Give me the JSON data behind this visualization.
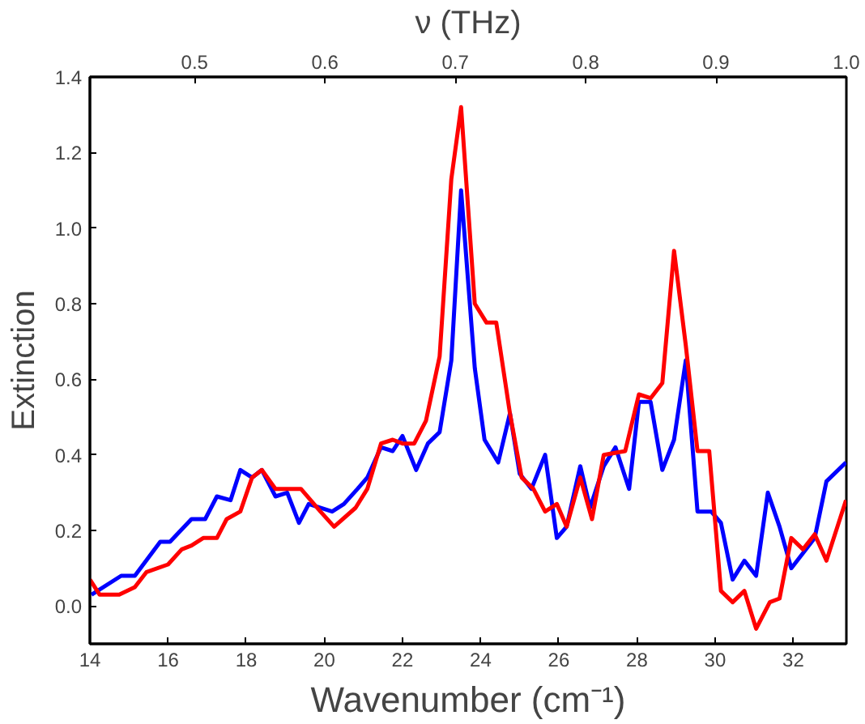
{
  "chart_data": {
    "type": "line",
    "xlabel": "Wavenumber (cm⁻¹)",
    "ylabel": "Extinction",
    "x2label": "ν (THz)",
    "xlim": [
      14,
      33.36
    ],
    "xticks": [
      14,
      16,
      18,
      20,
      22,
      24,
      26,
      28,
      30,
      32
    ],
    "x2lim": [
      0.4197,
      1.0
    ],
    "x2ticks": [
      0.5,
      0.6,
      0.7,
      0.8,
      0.9,
      {
        "value": 1.0,
        "label": "1.0"
      }
    ],
    "ylim": [
      -0.1,
      1.4
    ],
    "yticks": [
      {
        "value": 0,
        "label": "0.0"
      },
      0.2,
      0.4,
      0.6,
      0.8,
      {
        "value": 1.0,
        "label": "1.0"
      },
      1.2,
      1.4
    ],
    "grid": false,
    "marker": "none",
    "line_style": "solid",
    "series": [
      {
        "color": "#0000ff",
        "x": [
          14.04,
          14.8,
          15.15,
          15.8,
          16.05,
          16.6,
          16.95,
          17.25,
          17.6,
          17.85,
          18.15,
          18.4,
          18.75,
          19.05,
          19.35,
          19.6,
          20.2,
          20.5,
          20.85,
          21.1,
          21.45,
          21.75,
          22.0,
          22.35,
          22.65,
          22.95,
          23.25,
          23.5,
          23.85,
          24.1,
          24.45,
          24.75,
          25.0,
          25.3,
          25.65,
          25.95,
          26.2,
          26.55,
          26.8,
          27.15,
          27.45,
          27.8,
          28.05,
          28.35,
          28.65,
          28.95,
          29.25,
          29.55,
          29.9,
          30.15,
          30.45,
          30.75,
          31.05,
          31.35,
          31.65,
          31.95,
          32.25,
          32.55,
          32.85,
          33.35
        ],
        "values": [
          0.03,
          0.08,
          0.08,
          0.17,
          0.17,
          0.23,
          0.23,
          0.29,
          0.28,
          0.36,
          0.34,
          0.36,
          0.29,
          0.3,
          0.22,
          0.27,
          0.25,
          0.27,
          0.31,
          0.34,
          0.42,
          0.41,
          0.45,
          0.36,
          0.43,
          0.46,
          0.65,
          1.1,
          0.63,
          0.44,
          0.38,
          0.51,
          0.35,
          0.31,
          0.4,
          0.18,
          0.21,
          0.37,
          0.26,
          0.37,
          0.42,
          0.31,
          0.54,
          0.54,
          0.36,
          0.44,
          0.65,
          0.25,
          0.25,
          0.22,
          0.07,
          0.12,
          0.08,
          0.3,
          0.21,
          0.1,
          0.14,
          0.18,
          0.33,
          0.38
        ]
      },
      {
        "color": "#ff0000",
        "x": [
          14.0,
          14.25,
          14.75,
          15.15,
          15.45,
          16.0,
          16.35,
          16.6,
          16.9,
          17.25,
          17.5,
          17.85,
          18.15,
          18.4,
          18.75,
          19.4,
          19.9,
          20.25,
          20.8,
          21.1,
          21.45,
          21.75,
          22.0,
          22.3,
          22.6,
          22.95,
          23.25,
          23.5,
          23.85,
          24.15,
          24.4,
          24.75,
          25.05,
          25.35,
          25.65,
          25.95,
          26.2,
          26.55,
          26.85,
          27.15,
          27.7,
          28.05,
          28.35,
          28.65,
          28.95,
          29.25,
          29.55,
          29.85,
          30.15,
          30.45,
          30.75,
          31.05,
          31.4,
          31.65,
          31.95,
          32.25,
          32.55,
          32.85,
          33.35
        ],
        "values": [
          0.07,
          0.03,
          0.03,
          0.05,
          0.09,
          0.11,
          0.15,
          0.16,
          0.18,
          0.18,
          0.23,
          0.25,
          0.34,
          0.36,
          0.31,
          0.31,
          0.25,
          0.21,
          0.26,
          0.31,
          0.43,
          0.44,
          0.43,
          0.43,
          0.49,
          0.66,
          1.13,
          1.32,
          0.8,
          0.75,
          0.75,
          0.51,
          0.34,
          0.31,
          0.25,
          0.27,
          0.21,
          0.34,
          0.23,
          0.4,
          0.41,
          0.56,
          0.55,
          0.59,
          0.94,
          0.69,
          0.41,
          0.41,
          0.04,
          0.01,
          0.04,
          -0.06,
          0.01,
          0.02,
          0.18,
          0.15,
          0.19,
          0.12,
          0.28
        ]
      }
    ]
  }
}
